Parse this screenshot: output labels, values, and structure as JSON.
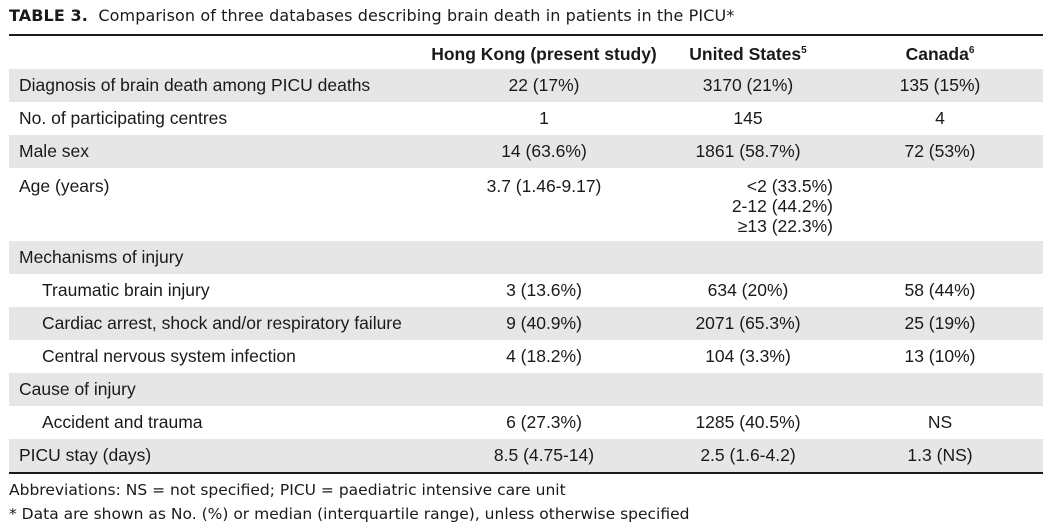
{
  "caption": {
    "label": "TABLE 3.",
    "text": "Comparison of three databases describing brain death in patients in the PICU",
    "marker": "*"
  },
  "columns": [
    {
      "label": "",
      "sup": ""
    },
    {
      "label": "Hong Kong (present study)",
      "sup": ""
    },
    {
      "label": "United States",
      "sup": "5"
    },
    {
      "label": "Canada",
      "sup": "6"
    }
  ],
  "rows": [
    {
      "label": "Diagnosis of brain death among PICU deaths",
      "hk": "22 (17%)",
      "us": "3170 (21%)",
      "ca": "135 (15%)"
    },
    {
      "label": "No. of participating centres",
      "hk": "1",
      "us": "145",
      "ca": "4"
    },
    {
      "label": "Male sex",
      "hk": "14 (63.6%)",
      "us": "1861 (58.7%)",
      "ca": "72 (53%)"
    },
    {
      "label": "Age (years)",
      "hk": "3.7 (1.46-9.17)",
      "us_lines": [
        "<2 (33.5%)",
        "2-12 (44.2%)",
        "≥13 (22.3%)"
      ],
      "ca": ""
    },
    {
      "label": "Mechanisms of injury",
      "hk": "",
      "us": "",
      "ca": ""
    },
    {
      "label": "Traumatic brain injury",
      "hk": "3 (13.6%)",
      "us": "634 (20%)",
      "ca": "58 (44%)"
    },
    {
      "label": "Cardiac arrest, shock and/or respiratory failure",
      "hk": "9 (40.9%)",
      "us": "2071 (65.3%)",
      "ca": "25 (19%)"
    },
    {
      "label": "Central nervous system infection",
      "hk": "4 (18.2%)",
      "us": "104 (3.3%)",
      "ca": "13 (10%)"
    },
    {
      "label": "Cause of injury",
      "hk": "",
      "us": "",
      "ca": ""
    },
    {
      "label": "Accident and trauma",
      "hk": "6 (27.3%)",
      "us": "1285 (40.5%)",
      "ca": "NS"
    },
    {
      "label": "PICU stay (days)",
      "hk": "8.5 (4.75-14)",
      "us": "2.5 (1.6-4.2)",
      "ca": "1.3 (NS)"
    }
  ],
  "footnotes": {
    "abbreviations": "Abbreviations: NS = not specified; PICU = paediatric intensive care unit",
    "note": "*   Data are shown as No. (%) or median (interquartile range), unless otherwise specified"
  },
  "colors": {
    "shade": "#e6e6e6",
    "text": "#1a1a1a",
    "rule": "#1a1a1a"
  }
}
